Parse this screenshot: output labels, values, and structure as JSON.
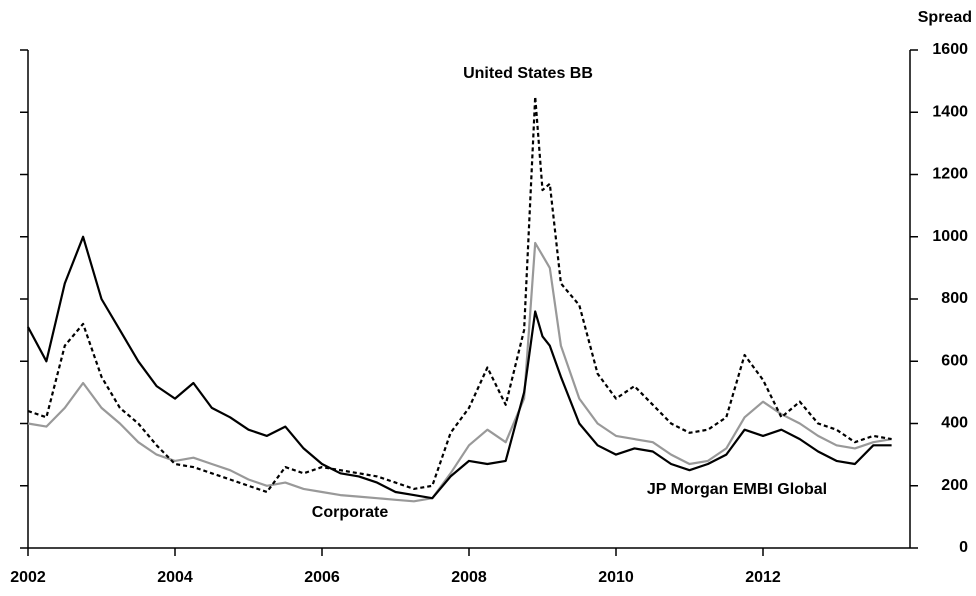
{
  "chart_data": {
    "type": "line",
    "y_label": "Spread",
    "x": [
      2002,
      2002.25,
      2002.5,
      2002.75,
      2003,
      2003.25,
      2003.5,
      2003.75,
      2004,
      2004.25,
      2004.5,
      2004.75,
      2005,
      2005.25,
      2005.5,
      2005.75,
      2006,
      2006.25,
      2006.5,
      2006.75,
      2007,
      2007.25,
      2007.5,
      2007.75,
      2008,
      2008.25,
      2008.5,
      2008.75,
      2008.9,
      2009,
      2009.1,
      2009.25,
      2009.5,
      2009.75,
      2010,
      2010.25,
      2010.5,
      2010.75,
      2011,
      2011.25,
      2011.5,
      2011.75,
      2012,
      2012.25,
      2012.5,
      2012.75,
      2013,
      2013.25,
      2013.5,
      2013.75
    ],
    "series": [
      {
        "name": "JP Morgan EMBI Global",
        "color": "#000000",
        "line_style": "solid",
        "values": [
          710,
          600,
          850,
          1000,
          800,
          700,
          600,
          520,
          480,
          530,
          450,
          420,
          380,
          360,
          390,
          320,
          270,
          240,
          230,
          210,
          180,
          170,
          160,
          230,
          280,
          270,
          280,
          500,
          760,
          680,
          650,
          550,
          400,
          330,
          300,
          320,
          310,
          270,
          250,
          270,
          300,
          380,
          360,
          380,
          350,
          310,
          280,
          270,
          330,
          330
        ]
      },
      {
        "name": "United States BB",
        "color": "#000000",
        "line_style": "dashed",
        "values": [
          440,
          420,
          650,
          720,
          550,
          450,
          400,
          330,
          270,
          260,
          240,
          220,
          200,
          180,
          260,
          240,
          260,
          250,
          240,
          230,
          210,
          190,
          200,
          370,
          450,
          580,
          460,
          700,
          1450,
          1150,
          1170,
          850,
          780,
          560,
          480,
          520,
          460,
          400,
          370,
          380,
          420,
          620,
          540,
          420,
          470,
          400,
          380,
          340,
          360,
          350
        ]
      },
      {
        "name": "Corporate",
        "color": "#999999",
        "line_style": "solid",
        "values": [
          400,
          390,
          450,
          530,
          450,
          400,
          340,
          300,
          280,
          290,
          270,
          250,
          220,
          200,
          210,
          190,
          180,
          170,
          165,
          160,
          155,
          150,
          160,
          240,
          330,
          380,
          340,
          480,
          980,
          940,
          900,
          650,
          480,
          400,
          360,
          350,
          340,
          300,
          270,
          280,
          320,
          420,
          470,
          430,
          400,
          360,
          330,
          320,
          340,
          350
        ]
      }
    ],
    "xlim": [
      2002,
      2014
    ],
    "xticks": [
      2002,
      2004,
      2006,
      2008,
      2010,
      2012
    ],
    "ylim": [
      0,
      1600
    ],
    "yticks": [
      0,
      200,
      400,
      600,
      800,
      1000,
      1200,
      1400,
      1600
    ],
    "y_axis_side": "right",
    "grid": false
  }
}
